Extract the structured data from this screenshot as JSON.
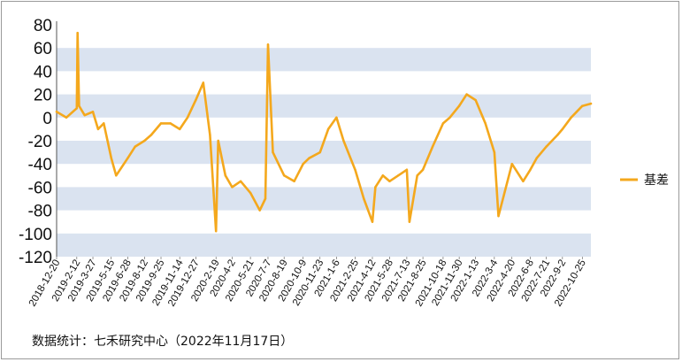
{
  "chart_data": {
    "type": "line",
    "title": "",
    "xlabel": "",
    "ylabel": "",
    "ylim": [
      -120,
      80
    ],
    "yticks": [
      80,
      60,
      40,
      20,
      0,
      -20,
      -40,
      -60,
      -80,
      -100,
      -120
    ],
    "grid": "alternating horizontal bands",
    "legend_position": "right",
    "series": [
      {
        "name": "基差",
        "color": "#F4A81D",
        "x": [
          "2018-12-20",
          "2019-1-15",
          "2019-2-12",
          "2019-2-14",
          "2019-2-18",
          "2019-3-5",
          "2019-3-27",
          "2019-4-10",
          "2019-4-25",
          "2019-5-15",
          "2019-5-28",
          "2019-6-28",
          "2019-7-18",
          "2019-8-12",
          "2019-8-30",
          "2019-9-25",
          "2019-10-20",
          "2019-11-14",
          "2019-12-5",
          "2019-12-27",
          "2020-1-16",
          "2020-2-3",
          "2020-2-19",
          "2020-2-25",
          "2020-3-15",
          "2020-4-2",
          "2020-4-25",
          "2020-5-21",
          "2020-6-15",
          "2020-6-30",
          "2020-7-7",
          "2020-7-20",
          "2020-8-19",
          "2020-9-15",
          "2020-10-9",
          "2020-10-25",
          "2020-11-23",
          "2020-12-15",
          "2021-1-6",
          "2021-1-25",
          "2021-2-25",
          "2021-3-20",
          "2021-4-12",
          "2021-4-20",
          "2021-5-10",
          "2021-5-28",
          "2021-6-20",
          "2021-7-13",
          "2021-7-20",
          "2021-8-10",
          "2021-8-25",
          "2021-9-20",
          "2021-10-18",
          "2021-11-5",
          "2021-11-30",
          "2021-12-20",
          "2022-1-13",
          "2022-2-8",
          "2022-3-4",
          "2022-3-15",
          "2022-4-20",
          "2022-5-20",
          "2022-6-8",
          "2022-6-25",
          "2022-7-21",
          "2022-8-20",
          "2022-9-2",
          "2022-9-25",
          "2022-10-10",
          "2022-10-25",
          "2022-11-17"
        ],
        "values": [
          5,
          0,
          8,
          73,
          10,
          2,
          5,
          -10,
          -5,
          -35,
          -50,
          -35,
          -25,
          -20,
          -15,
          -5,
          -5,
          -10,
          0,
          15,
          30,
          -15,
          -98,
          -20,
          -50,
          -60,
          -55,
          -65,
          -80,
          -70,
          63,
          -30,
          -50,
          -55,
          -40,
          -35,
          -30,
          -10,
          0,
          -20,
          -45,
          -70,
          -90,
          -60,
          -50,
          -55,
          -50,
          -45,
          -90,
          -50,
          -45,
          -25,
          -5,
          0,
          10,
          20,
          15,
          -5,
          -30,
          -85,
          -40,
          -55,
          -45,
          -35,
          -25,
          -15,
          -10,
          0,
          5,
          10,
          12
        ]
      }
    ],
    "xtick_labels": [
      "2018-12-20",
      "2019-2-12",
      "2019-3-27",
      "2019-5-15",
      "2019-6-28",
      "2019-8-12",
      "2019-9-25",
      "2019-11-14",
      "2019-12-27",
      "2020-2-19",
      "2020-4-2",
      "2020-5-21",
      "2020-7-7",
      "2020-8-19",
      "2020-10-9",
      "2020-11-23",
      "2021-1-6",
      "2021-2-25",
      "2021-4-12",
      "2021-5-28",
      "2021-7-13",
      "2021-8-25",
      "2021-10-18",
      "2021-11-30",
      "2022-1-13",
      "2022-3-4",
      "2022-4-20",
      "2022-6-8",
      "2022-7-21",
      "2022-9-2",
      "2022-10-25"
    ],
    "colors": {
      "band": "#DAE3F0",
      "line": "#F4A81D",
      "axis": "#555555"
    }
  },
  "footer": {
    "source": "数据统计：七禾研究中心（2022年11月17日）"
  }
}
